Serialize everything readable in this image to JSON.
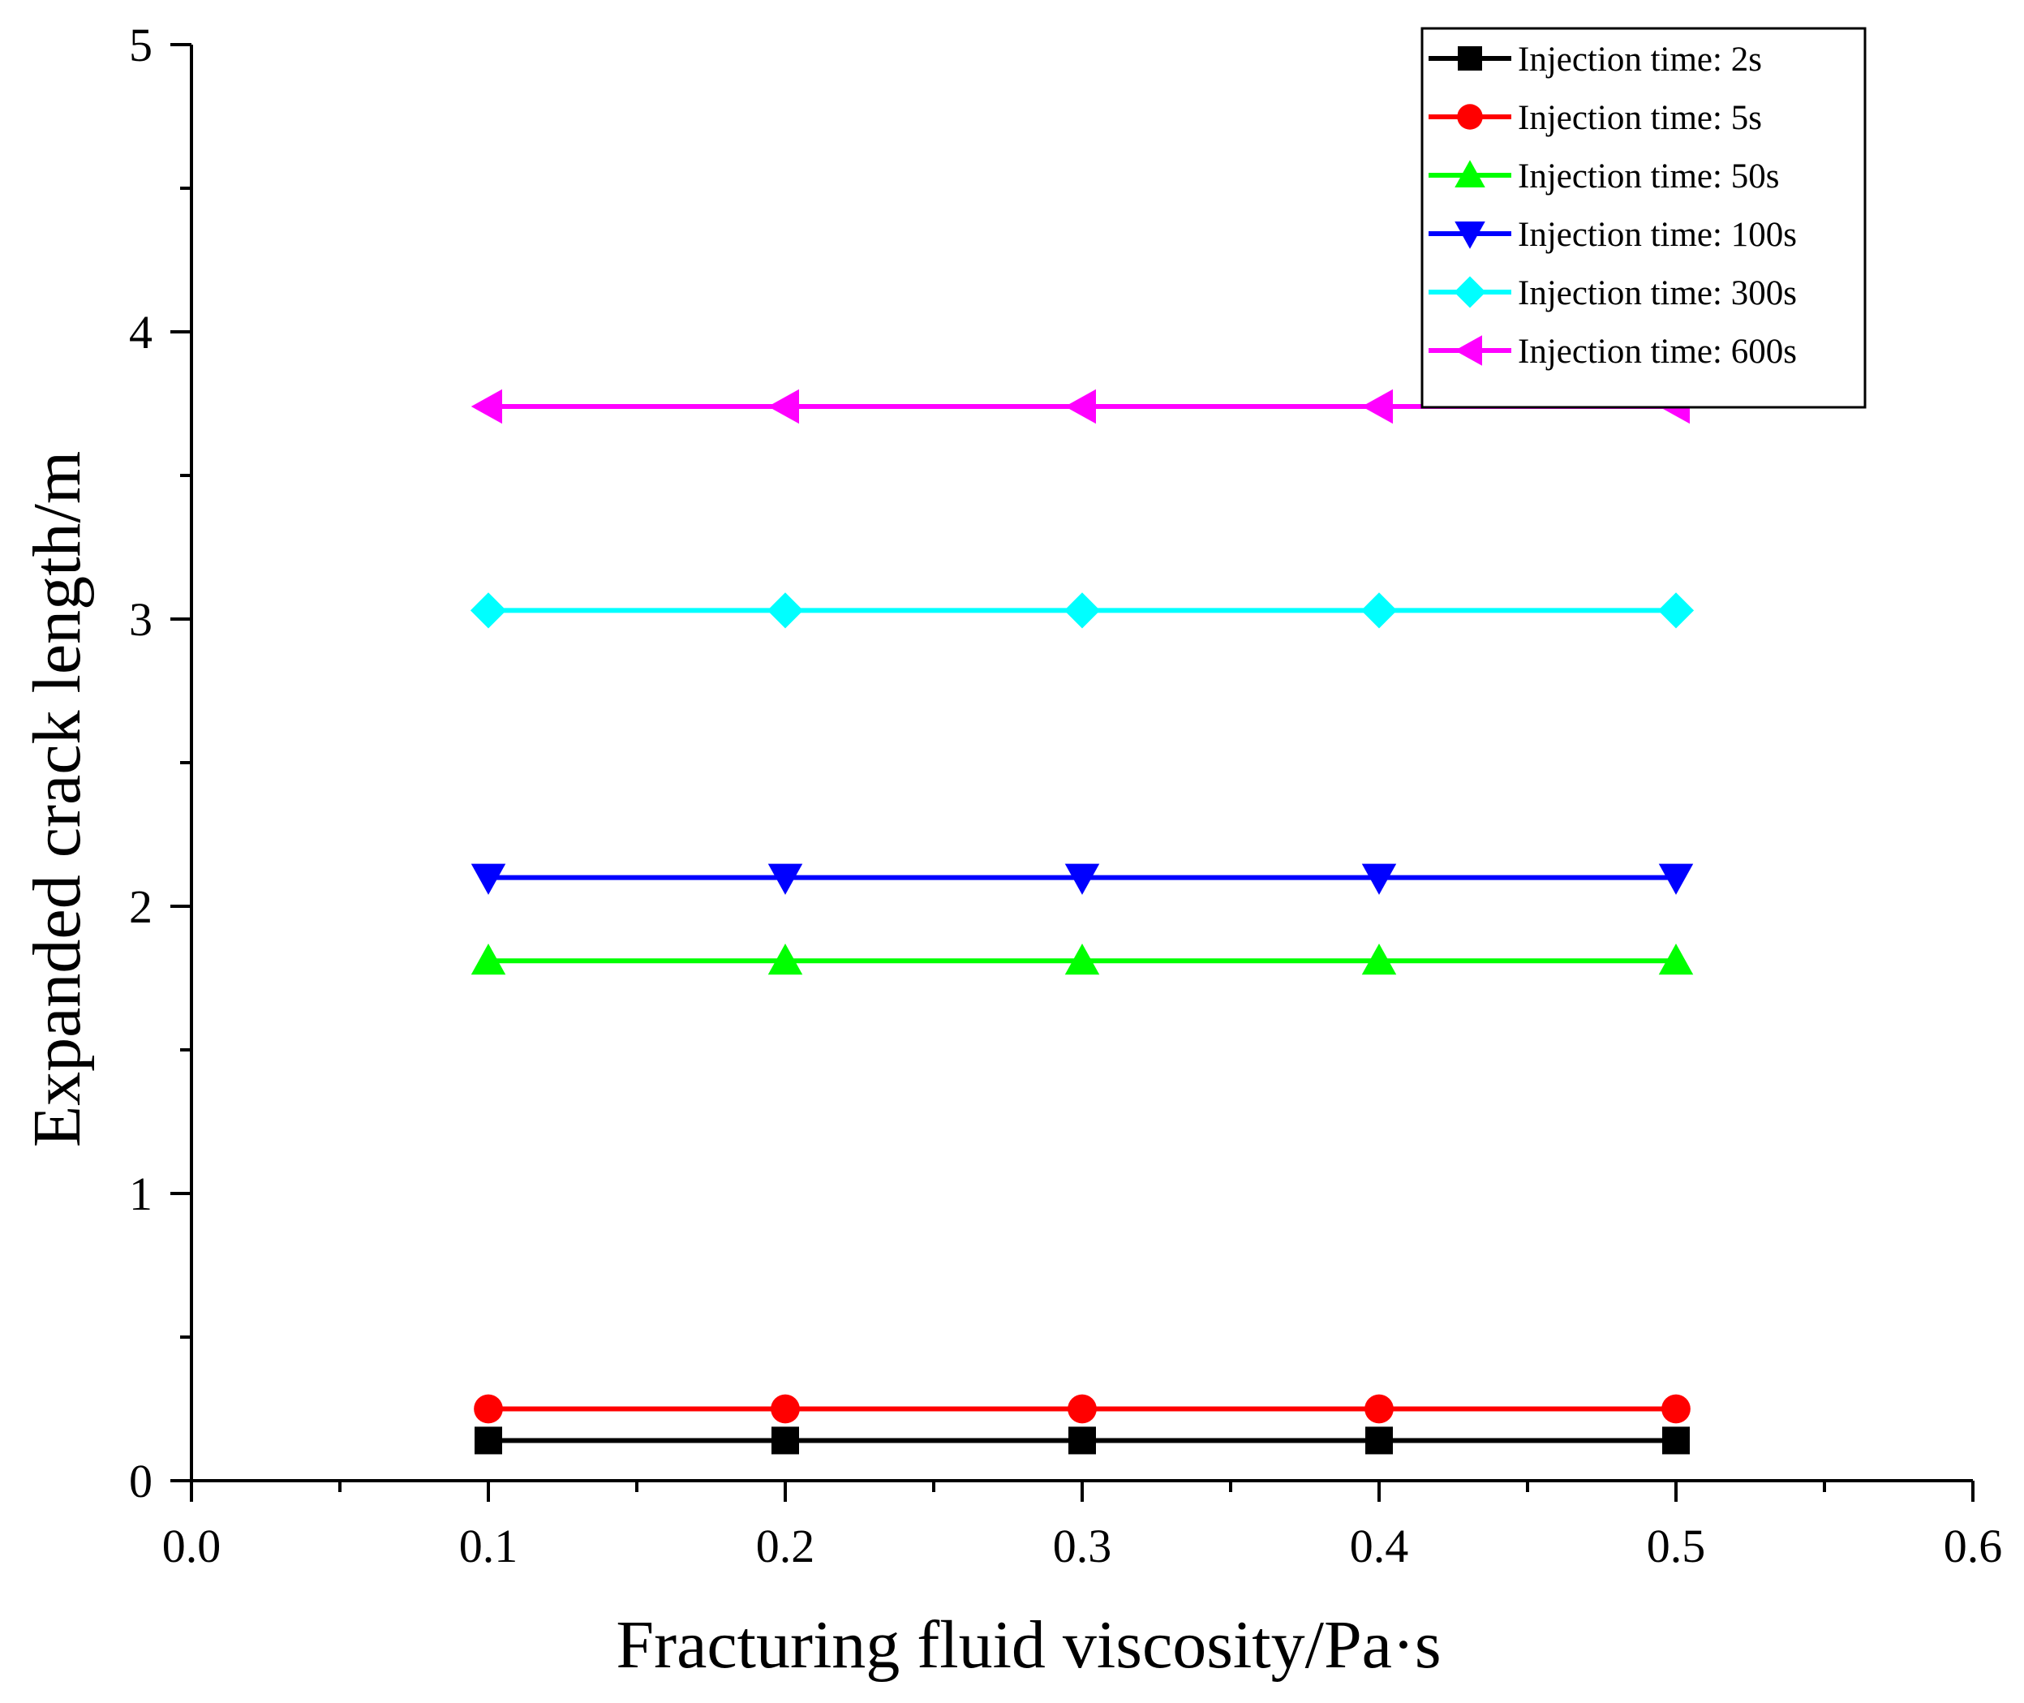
{
  "chart_data": {
    "type": "line",
    "title": "",
    "xlabel": "Fracturing fluid viscosity/Pa·s",
    "ylabel": "Expanded crack length/m",
    "xlim": [
      0.0,
      0.6
    ],
    "ylim": [
      0,
      5
    ],
    "x_ticks": [
      "0.0",
      "0.1",
      "0.2",
      "0.3",
      "0.4",
      "0.5",
      "0.6"
    ],
    "y_ticks": [
      "0",
      "1",
      "2",
      "3",
      "4",
      "5"
    ],
    "grid": false,
    "legend_position": "top-right",
    "x": [
      0.1,
      0.2,
      0.3,
      0.4,
      0.5
    ],
    "series": [
      {
        "name": "Injection time: 2s",
        "color": "#000000",
        "marker": "square",
        "values": [
          0.14,
          0.14,
          0.14,
          0.14,
          0.14
        ]
      },
      {
        "name": "Injection time: 5s",
        "color": "#ff0000",
        "marker": "circle",
        "values": [
          0.25,
          0.25,
          0.25,
          0.25,
          0.25
        ]
      },
      {
        "name": "Injection time: 50s",
        "color": "#00ff00",
        "marker": "triangle-up",
        "values": [
          1.81,
          1.81,
          1.81,
          1.81,
          1.81
        ]
      },
      {
        "name": "Injection time: 100s",
        "color": "#0000ff",
        "marker": "triangle-down",
        "values": [
          2.1,
          2.1,
          2.1,
          2.1,
          2.1
        ]
      },
      {
        "name": "Injection time: 300s",
        "color": "#00ffff",
        "marker": "diamond",
        "values": [
          3.03,
          3.03,
          3.03,
          3.03,
          3.03
        ]
      },
      {
        "name": "Injection time: 600s",
        "color": "#ff00ff",
        "marker": "triangle-left",
        "values": [
          3.74,
          3.74,
          3.74,
          3.74,
          3.74
        ]
      }
    ]
  }
}
